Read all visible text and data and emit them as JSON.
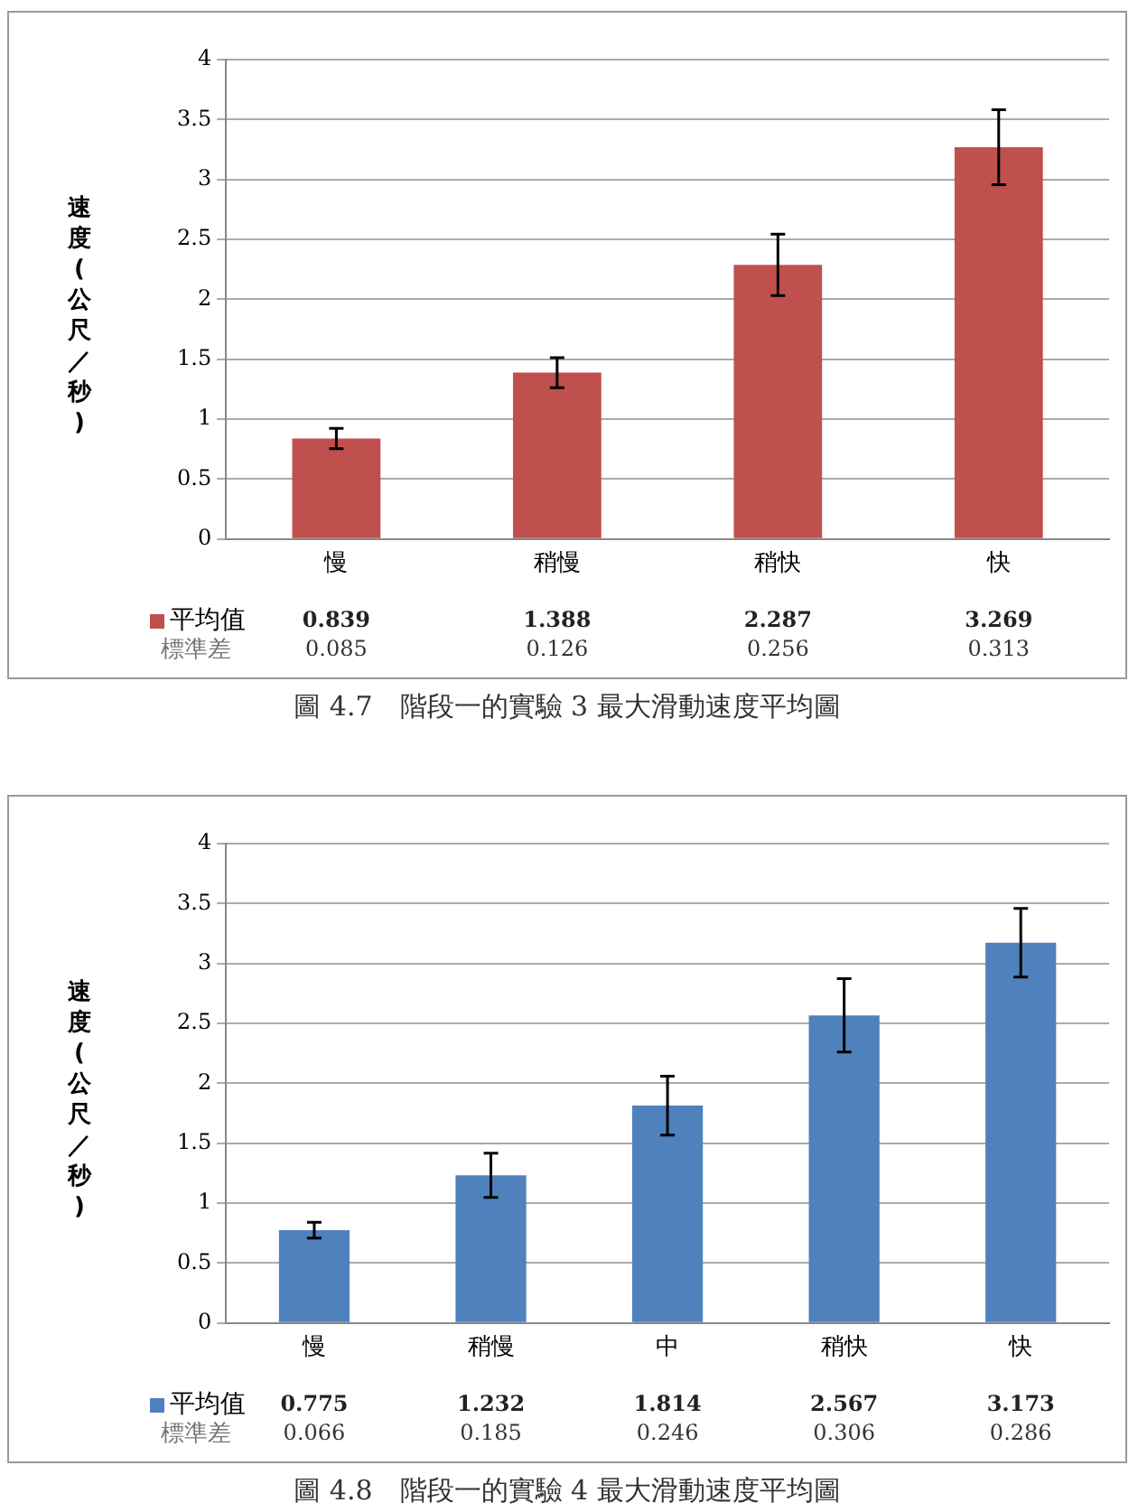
{
  "chart_data": [
    {
      "type": "bar",
      "title": "圖 4.7　階段一的實驗 3 最大滑動速度平均圖",
      "ylabel": "速度(公尺／秒)",
      "categories": [
        "慢",
        "稍慢",
        "稍快",
        "快"
      ],
      "series": [
        {
          "name": "平均值",
          "color": "#c0504d",
          "values": [
            0.839,
            1.388,
            2.287,
            3.269
          ],
          "errors": [
            0.085,
            0.126,
            0.256,
            0.313
          ]
        }
      ],
      "annotations": [
        "標準差",
        "0.085",
        "0.126",
        "0.256",
        "0.313"
      ],
      "data_labels": true,
      "ylim": [
        0,
        4
      ],
      "yticks": [
        0,
        0.5,
        1,
        1.5,
        2,
        2.5,
        3,
        3.5,
        4
      ],
      "grid": "y",
      "legend": "bottom"
    },
    {
      "type": "bar",
      "title": "圖 4.8　階段一的實驗 4 最大滑動速度平均圖",
      "ylabel": "速度(公尺／秒)",
      "categories": [
        "慢",
        "稍慢",
        "中",
        "稍快",
        "快"
      ],
      "series": [
        {
          "name": "平均值",
          "color": "#4f81bd",
          "values": [
            0.775,
            1.232,
            1.814,
            2.567,
            3.173
          ],
          "errors": [
            0.066,
            0.185,
            0.246,
            0.306,
            0.286
          ]
        }
      ],
      "annotations": [
        "標準差",
        "0.066",
        "0.185",
        "0.246",
        "0.306",
        "0.286"
      ],
      "data_labels": true,
      "ylim": [
        0,
        4
      ],
      "yticks": [
        0,
        0.5,
        1,
        1.5,
        2,
        2.5,
        3,
        3.5,
        4
      ],
      "grid": "y",
      "legend": "bottom"
    }
  ]
}
